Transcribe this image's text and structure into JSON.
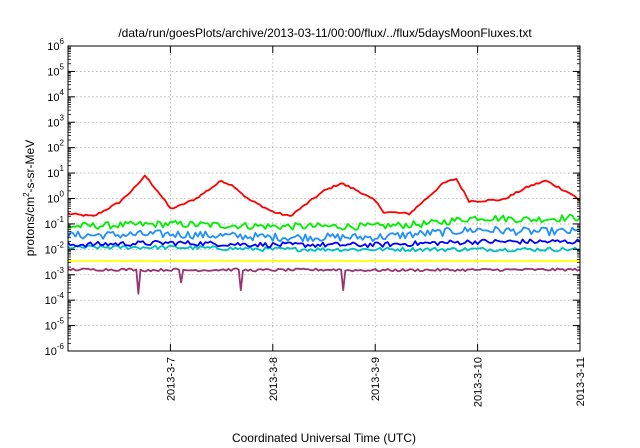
{
  "chart_data": {
    "type": "line",
    "title": "/data/run/goesPlots/archive/2013-03-11/00:00/flux/../flux/5daysMoonFluxes.txt",
    "xlabel": "Coordinated Universal Time (UTC)",
    "ylabel_main": "protons/cm",
    "ylabel_sup": "2",
    "ylabel_tail": "-s-sr-MeV",
    "y_scale": "log",
    "ylim": [
      1e-06,
      1000000.0
    ],
    "y_ticks": [
      {
        "value": 1e-06,
        "base": "10",
        "exp": "-6"
      },
      {
        "value": 1e-05,
        "base": "10",
        "exp": "-5"
      },
      {
        "value": 0.0001,
        "base": "10",
        "exp": "-4"
      },
      {
        "value": 0.001,
        "base": "10",
        "exp": "-3"
      },
      {
        "value": 0.01,
        "base": "10",
        "exp": "-2"
      },
      {
        "value": 0.1,
        "base": "10",
        "exp": "-1"
      },
      {
        "value": 1,
        "base": "10",
        "exp": "0"
      },
      {
        "value": 10,
        "base": "10",
        "exp": "1"
      },
      {
        "value": 100,
        "base": "10",
        "exp": "2"
      },
      {
        "value": 1000,
        "base": "10",
        "exp": "3"
      },
      {
        "value": 10000,
        "base": "10",
        "exp": "4"
      },
      {
        "value": 100000,
        "base": "10",
        "exp": "5"
      },
      {
        "value": 1000000,
        "base": "10",
        "exp": "6"
      }
    ],
    "x_range": [
      "2013-03-06 00:00",
      "2013-03-11 00:00"
    ],
    "x_ticks": [
      "2013-3-7",
      "2013-3-8",
      "2013-3-9",
      "2013-3-10",
      "2013-3-11"
    ],
    "grid": true,
    "legend": "none",
    "series": [
      {
        "color": "#ff0000",
        "x": [
          "2013-03-06 00:00",
          "2013-03-06 06:00",
          "2013-03-06 12:00",
          "2013-03-06 16:00",
          "2013-03-06 18:00",
          "2013-03-06 19:00",
          "2013-03-06 21:00",
          "2013-03-07 00:00",
          "2013-03-07 02:00",
          "2013-03-07 06:00",
          "2013-03-07 12:00",
          "2013-03-07 15:00",
          "2013-03-07 18:00",
          "2013-03-08 00:00",
          "2013-03-08 04:00",
          "2013-03-08 12:00",
          "2013-03-08 16:00",
          "2013-03-08 20:00",
          "2013-03-09 00:00",
          "2013-03-09 02:00",
          "2013-03-09 08:00",
          "2013-03-09 12:00",
          "2013-03-09 16:00",
          "2013-03-09 19:00",
          "2013-03-09 22:00",
          "2013-03-10 00:00",
          "2013-03-10 06:00",
          "2013-03-10 12:00",
          "2013-03-10 16:00",
          "2013-03-10 22:00",
          "2013-03-11 00:00"
        ],
        "values": [
          0.25,
          0.2,
          0.7,
          3,
          8,
          5,
          2,
          0.4,
          0.5,
          1,
          5,
          3,
          1,
          0.3,
          0.2,
          2,
          4,
          2,
          0.8,
          0.3,
          0.25,
          1,
          4,
          6,
          0.8,
          0.8,
          0.9,
          3,
          5,
          1.5,
          0.8
        ]
      },
      {
        "color": "#00ee00",
        "x": [
          "2013-03-06 00:00",
          "2013-03-07 00:00",
          "2013-03-08 00:00",
          "2013-03-09 00:00",
          "2013-03-09 12:00",
          "2013-03-10 00:00",
          "2013-03-10 12:00",
          "2013-03-11 00:00"
        ],
        "values": [
          0.08,
          0.1,
          0.08,
          0.08,
          0.1,
          0.18,
          0.15,
          0.18
        ]
      },
      {
        "color": "#1e90ff",
        "x": [
          "2013-03-06 00:00",
          "2013-03-07 00:00",
          "2013-03-08 00:00",
          "2013-03-09 00:00",
          "2013-03-10 00:00",
          "2013-03-10 12:00",
          "2013-03-11 00:00"
        ],
        "values": [
          0.035,
          0.04,
          0.03,
          0.03,
          0.06,
          0.05,
          0.05
        ]
      },
      {
        "color": "#00bfbf",
        "x": [
          "2013-03-06 00:00",
          "2013-03-07 00:00",
          "2013-03-08 00:00",
          "2013-03-09 00:00",
          "2013-03-10 00:00",
          "2013-03-11 00:00"
        ],
        "values": [
          0.012,
          0.012,
          0.01,
          0.01,
          0.01,
          0.01
        ]
      },
      {
        "color": "#0000ff",
        "x": [
          "2013-03-06 00:00",
          "2013-03-07 00:00",
          "2013-03-08 00:00",
          "2013-03-09 00:00",
          "2013-03-10 00:00",
          "2013-03-11 00:00"
        ],
        "values": [
          0.015,
          0.018,
          0.015,
          0.015,
          0.02,
          0.02
        ]
      },
      {
        "color": "#ffff00",
        "x": [
          "2013-03-06 00:00",
          "2013-03-11 00:00"
        ],
        "values": [
          0.0035,
          0.0035
        ]
      },
      {
        "color": "#99336b",
        "x": [
          "2013-03-06 00:00",
          "2013-03-06 16:00",
          "2013-03-06 16:30",
          "2013-03-06 17:00",
          "2013-03-07 02:00",
          "2013-03-07 02:30",
          "2013-03-07 03:00",
          "2013-03-07 16:00",
          "2013-03-07 16:30",
          "2013-03-07 17:00",
          "2013-03-08 16:00",
          "2013-03-08 16:30",
          "2013-03-08 17:00",
          "2013-03-11 00:00"
        ],
        "values": [
          0.0016,
          0.0016,
          0.00018,
          0.0015,
          0.0016,
          0.0005,
          0.0015,
          0.0016,
          0.00025,
          0.0015,
          0.0016,
          0.00025,
          0.0015,
          0.0016
        ]
      }
    ]
  }
}
